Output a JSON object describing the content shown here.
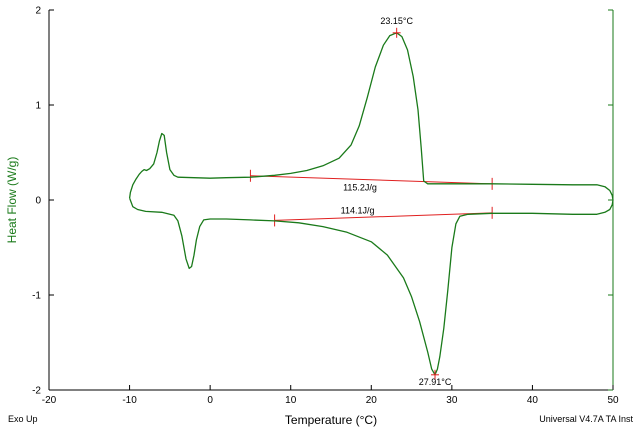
{
  "chart_data": {
    "type": "line",
    "xlabel": "Temperature (°C)",
    "ylabel": "Heat Flow (W/g)",
    "xlim": [
      -20,
      50
    ],
    "ylim": [
      -2,
      2
    ],
    "x_ticks": [
      -20,
      -10,
      0,
      10,
      20,
      30,
      40,
      50
    ],
    "y_ticks": [
      -2,
      -1,
      0,
      1,
      2
    ],
    "grid": false,
    "colors": {
      "curve": "#1a7a1a",
      "baseline": "#e02020",
      "ylabel": "#1a7a1a"
    },
    "series": [
      {
        "points": [
          [
            -10.0,
            0.02
          ],
          [
            -9.9,
            0.08
          ],
          [
            -9.6,
            0.16
          ],
          [
            -9.2,
            0.22
          ],
          [
            -8.8,
            0.27
          ],
          [
            -8.5,
            0.3
          ],
          [
            -8.2,
            0.32
          ],
          [
            -7.9,
            0.31
          ],
          [
            -7.5,
            0.33
          ],
          [
            -7.0,
            0.38
          ],
          [
            -6.6,
            0.5
          ],
          [
            -6.3,
            0.62
          ],
          [
            -6.0,
            0.7
          ],
          [
            -5.7,
            0.68
          ],
          [
            -5.4,
            0.5
          ],
          [
            -5.0,
            0.32
          ],
          [
            -4.5,
            0.26
          ],
          [
            -4.0,
            0.24
          ],
          [
            -2.0,
            0.235
          ],
          [
            0.0,
            0.23
          ],
          [
            2.0,
            0.235
          ],
          [
            5.0,
            0.24
          ],
          [
            8.0,
            0.26
          ],
          [
            10.0,
            0.28
          ],
          [
            12.0,
            0.31
          ],
          [
            14.0,
            0.36
          ],
          [
            16.0,
            0.44
          ],
          [
            17.5,
            0.58
          ],
          [
            18.5,
            0.78
          ],
          [
            19.5,
            1.08
          ],
          [
            20.5,
            1.4
          ],
          [
            21.5,
            1.63
          ],
          [
            22.3,
            1.73
          ],
          [
            23.15,
            1.76
          ],
          [
            23.8,
            1.72
          ],
          [
            24.5,
            1.58
          ],
          [
            25.2,
            1.3
          ],
          [
            25.8,
            0.95
          ],
          [
            26.2,
            0.55
          ],
          [
            26.5,
            0.2
          ],
          [
            27.0,
            0.17
          ],
          [
            30.0,
            0.17
          ],
          [
            35.0,
            0.17
          ],
          [
            40.0,
            0.165
          ],
          [
            45.0,
            0.16
          ],
          [
            48.0,
            0.16
          ],
          [
            49.0,
            0.14
          ],
          [
            49.6,
            0.1
          ],
          [
            49.9,
            0.05
          ],
          [
            50.0,
            0.0
          ],
          [
            49.9,
            -0.05
          ],
          [
            49.6,
            -0.1
          ],
          [
            49.0,
            -0.13
          ],
          [
            48.0,
            -0.15
          ],
          [
            45.0,
            -0.15
          ],
          [
            40.0,
            -0.14
          ],
          [
            35.0,
            -0.14
          ],
          [
            32.0,
            -0.15
          ],
          [
            31.0,
            -0.17
          ],
          [
            30.5,
            -0.25
          ],
          [
            30.0,
            -0.5
          ],
          [
            29.5,
            -0.95
          ],
          [
            29.0,
            -1.35
          ],
          [
            28.5,
            -1.65
          ],
          [
            28.2,
            -1.78
          ],
          [
            27.91,
            -1.84
          ],
          [
            27.5,
            -1.78
          ],
          [
            27.0,
            -1.6
          ],
          [
            26.0,
            -1.28
          ],
          [
            25.0,
            -1.02
          ],
          [
            24.0,
            -0.82
          ],
          [
            22.0,
            -0.58
          ],
          [
            20.0,
            -0.44
          ],
          [
            17.0,
            -0.34
          ],
          [
            14.0,
            -0.28
          ],
          [
            11.0,
            -0.24
          ],
          [
            8.0,
            -0.22
          ],
          [
            5.0,
            -0.21
          ],
          [
            2.0,
            -0.2
          ],
          [
            0.0,
            -0.2
          ],
          [
            -0.8,
            -0.21
          ],
          [
            -1.3,
            -0.28
          ],
          [
            -1.7,
            -0.42
          ],
          [
            -2.0,
            -0.58
          ],
          [
            -2.3,
            -0.7
          ],
          [
            -2.6,
            -0.72
          ],
          [
            -3.0,
            -0.62
          ],
          [
            -3.5,
            -0.38
          ],
          [
            -4.0,
            -0.22
          ],
          [
            -4.5,
            -0.16
          ],
          [
            -6.0,
            -0.13
          ],
          [
            -8.0,
            -0.12
          ],
          [
            -9.0,
            -0.1
          ],
          [
            -9.6,
            -0.07
          ],
          [
            -10.0,
            0.02
          ]
        ]
      }
    ],
    "baselines": [
      {
        "from": [
          5.0,
          0.255
        ],
        "to": [
          35.0,
          0.17
        ]
      },
      {
        "from": [
          8.0,
          -0.215
        ],
        "to": [
          35.0,
          -0.135
        ]
      }
    ],
    "annotations": [
      {
        "text": "23.15°C",
        "x": 23.15,
        "y": 1.76
      },
      {
        "text": "115.2J/g",
        "x": 18.6,
        "y": 0.13
      },
      {
        "text": "114.1J/g",
        "x": 18.3,
        "y": -0.11
      },
      {
        "text": "27.91°C",
        "x": 27.91,
        "y": -1.84
      }
    ]
  },
  "footer": {
    "left": "Exo Up",
    "right": "Universal V4.7A TA Inst"
  }
}
